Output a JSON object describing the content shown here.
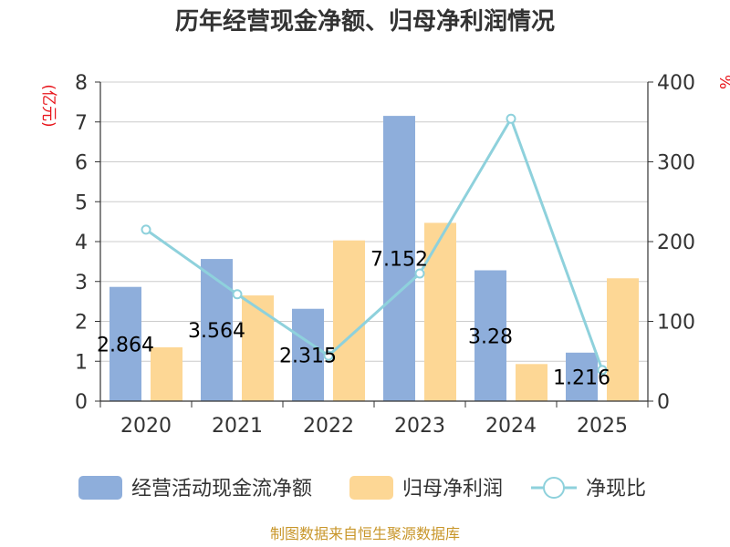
{
  "chart_data": {
    "type": "bar",
    "title": "历年经营现金净额、归母净利润情况",
    "categories": [
      "2020",
      "2021",
      "2022",
      "2023",
      "2024",
      "2025"
    ],
    "series": [
      {
        "name": "经营活动现金流净额",
        "type": "bar",
        "axis": "left",
        "color": "#8eaedb",
        "values": [
          2.864,
          3.564,
          2.315,
          7.152,
          3.28,
          1.216
        ]
      },
      {
        "name": "归母净利润",
        "type": "bar",
        "axis": "left",
        "color": "#fdd795",
        "values": [
          1.35,
          2.65,
          4.03,
          4.47,
          0.93,
          3.08
        ]
      },
      {
        "name": "净现比",
        "type": "line",
        "axis": "right",
        "color": "#8ed1dc",
        "values": [
          215,
          134,
          57,
          160,
          354,
          39
        ]
      }
    ],
    "data_labels": [
      "2.864",
      "3.564",
      "2.315",
      "7.152",
      "3.28",
      "1.216"
    ],
    "y_left": {
      "unit": "(亿元)",
      "min": 0,
      "max": 8,
      "ticks": [
        "0",
        "1",
        "2",
        "3",
        "4",
        "5",
        "6",
        "7",
        "8"
      ]
    },
    "y_right": {
      "unit": "%",
      "min": 0,
      "max": 400,
      "ticks": [
        "0",
        "100",
        "200",
        "300",
        "400"
      ]
    },
    "grid": true,
    "legend_position": "bottom"
  },
  "footer": {
    "source": "制图数据来自恒生聚源数据库"
  }
}
